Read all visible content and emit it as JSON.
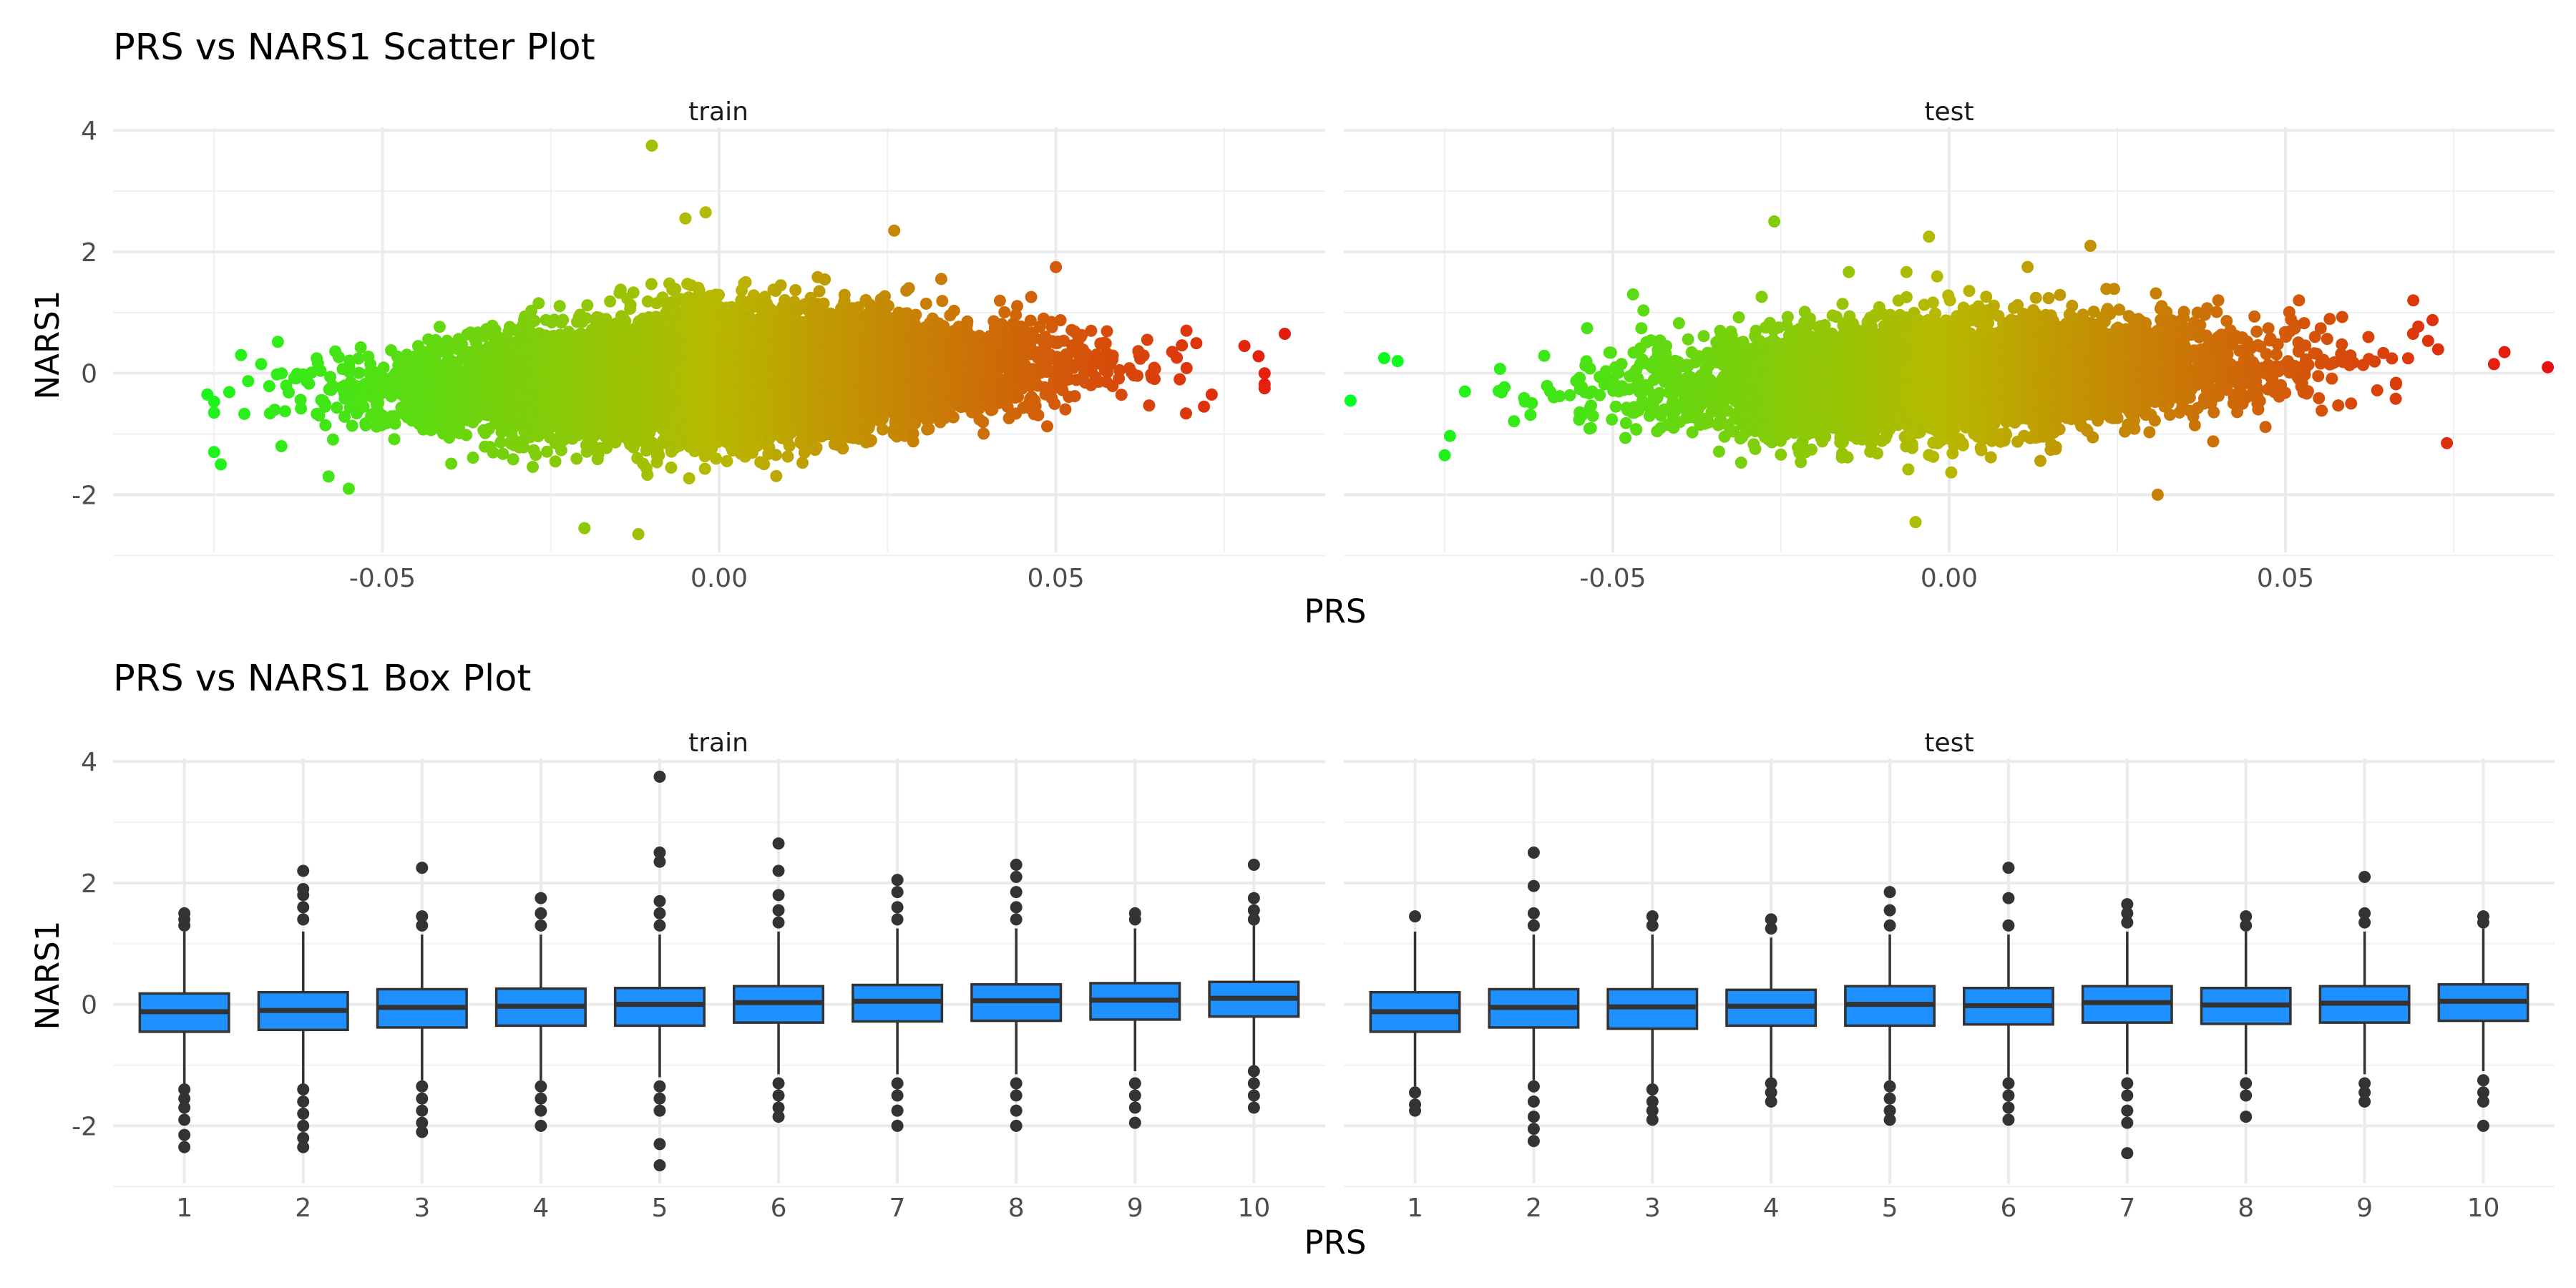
{
  "chart_data": [
    {
      "type": "scatter",
      "title": "PRS vs NARS1 Scatter Plot",
      "xlabel": "PRS",
      "ylabel": "NARS1",
      "panels": [
        "train",
        "test"
      ],
      "xlim": [
        -0.09,
        0.09
      ],
      "ylim": [
        -2.95,
        4.05
      ],
      "xticks": [
        -0.05,
        0.0,
        0.05
      ],
      "xtick_labels": [
        "-0.05",
        "0.00",
        "0.05"
      ],
      "yticks": [
        -2,
        0,
        2,
        4
      ],
      "ytick_labels": [
        "-2",
        "0",
        "2",
        "4"
      ],
      "grid": true,
      "color_scale": {
        "low": "#00ff22",
        "mid": "#b8b800",
        "high": "#e81010"
      },
      "approx_distribution": {
        "train": {
          "n_points": 9000,
          "prs_mean": 0.0,
          "prs_sd": 0.022,
          "prs_range": [
            -0.079,
            0.085
          ],
          "nars1_sd": 0.52,
          "trend": "positive"
        },
        "test": {
          "n_points": 5000,
          "prs_mean": 0.0,
          "prs_sd": 0.022,
          "prs_range": [
            -0.089,
            0.089
          ],
          "nars1_sd": 0.5,
          "trend": "positive"
        }
      },
      "notable_points": {
        "train": [
          [
            -0.076,
            -0.35
          ],
          [
            -0.074,
            -1.5
          ],
          [
            -0.071,
            0.3
          ],
          [
            -0.068,
            0.15
          ],
          [
            -0.066,
            -0.6
          ],
          [
            -0.065,
            -1.2
          ],
          [
            -0.058,
            -1.7
          ],
          [
            -0.055,
            -1.9
          ],
          [
            -0.01,
            3.75
          ],
          [
            -0.005,
            2.55
          ],
          [
            -0.002,
            2.65
          ],
          [
            0.026,
            2.35
          ],
          [
            0.05,
            1.75
          ],
          [
            0.072,
            -0.55
          ],
          [
            0.078,
            0.45
          ],
          [
            0.081,
            0.0
          ],
          [
            0.084,
            0.65
          ],
          [
            -0.02,
            -2.55
          ],
          [
            -0.012,
            -2.65
          ]
        ],
        "test": [
          [
            -0.089,
            -0.45
          ],
          [
            -0.084,
            0.25
          ],
          [
            -0.082,
            0.2
          ],
          [
            -0.075,
            -1.35
          ],
          [
            -0.072,
            -0.3
          ],
          [
            -0.047,
            1.3
          ],
          [
            -0.026,
            2.5
          ],
          [
            -0.003,
            2.25
          ],
          [
            0.021,
            2.1
          ],
          [
            0.052,
            1.2
          ],
          [
            0.069,
            1.2
          ],
          [
            0.074,
            -1.15
          ],
          [
            0.081,
            0.15
          ],
          [
            0.089,
            0.1
          ],
          [
            0.031,
            -2.0
          ],
          [
            -0.005,
            -2.45
          ]
        ]
      }
    },
    {
      "type": "box",
      "title": "PRS vs NARS1 Box Plot",
      "xlabel": "PRS",
      "ylabel": "NARS1",
      "panels": [
        "train",
        "test"
      ],
      "categories": [
        "1",
        "2",
        "3",
        "4",
        "5",
        "6",
        "7",
        "8",
        "9",
        "10"
      ],
      "ylim": [
        -2.95,
        4.05
      ],
      "yticks": [
        -2,
        0,
        2,
        4
      ],
      "ytick_labels": [
        "-2",
        "0",
        "2",
        "4"
      ],
      "box_color": "#1e90ff",
      "grid": true,
      "series": [
        {
          "name": "train",
          "boxes": [
            {
              "q1": -0.45,
              "median": -0.12,
              "q3": 0.18,
              "whisker_low": -1.3,
              "whisker_high": 1.2,
              "outliers_high": [
                1.3,
                1.4,
                1.5
              ],
              "outliers_low": [
                -1.4,
                -1.55,
                -1.7,
                -1.9,
                -2.15,
                -2.35
              ]
            },
            {
              "q1": -0.42,
              "median": -0.1,
              "q3": 0.2,
              "whisker_low": -1.3,
              "whisker_high": 1.2,
              "outliers_high": [
                1.4,
                1.6,
                1.8,
                1.9,
                2.2
              ],
              "outliers_low": [
                -1.4,
                -1.6,
                -1.8,
                -2.0,
                -2.2,
                -2.35
              ]
            },
            {
              "q1": -0.38,
              "median": -0.05,
              "q3": 0.25,
              "whisker_low": -1.25,
              "whisker_high": 1.15,
              "outliers_high": [
                1.3,
                1.45,
                2.25
              ],
              "outliers_low": [
                -1.35,
                -1.55,
                -1.75,
                -1.95,
                -2.1
              ]
            },
            {
              "q1": -0.35,
              "median": -0.03,
              "q3": 0.26,
              "whisker_low": -1.25,
              "whisker_high": 1.15,
              "outliers_high": [
                1.3,
                1.5,
                1.75
              ],
              "outliers_low": [
                -1.35,
                -1.55,
                -1.75,
                -2.0
              ]
            },
            {
              "q1": -0.35,
              "median": 0.0,
              "q3": 0.27,
              "whisker_low": -1.2,
              "whisker_high": 1.15,
              "outliers_high": [
                1.3,
                1.5,
                1.7,
                2.35,
                2.5,
                3.75
              ],
              "outliers_low": [
                -1.35,
                -1.55,
                -1.75,
                -2.3,
                -2.65
              ]
            },
            {
              "q1": -0.3,
              "median": 0.03,
              "q3": 0.3,
              "whisker_low": -1.15,
              "whisker_high": 1.2,
              "outliers_high": [
                1.35,
                1.55,
                1.8,
                2.2,
                2.65
              ],
              "outliers_low": [
                -1.3,
                -1.5,
                -1.7,
                -1.85
              ]
            },
            {
              "q1": -0.28,
              "median": 0.05,
              "q3": 0.32,
              "whisker_low": -1.15,
              "whisker_high": 1.25,
              "outliers_high": [
                1.4,
                1.6,
                1.85,
                2.05
              ],
              "outliers_low": [
                -1.3,
                -1.5,
                -1.75,
                -2.0
              ]
            },
            {
              "q1": -0.27,
              "median": 0.06,
              "q3": 0.33,
              "whisker_low": -1.15,
              "whisker_high": 1.25,
              "outliers_high": [
                1.4,
                1.6,
                1.85,
                2.1,
                2.3
              ],
              "outliers_low": [
                -1.3,
                -1.5,
                -1.75,
                -2.0
              ]
            },
            {
              "q1": -0.25,
              "median": 0.07,
              "q3": 0.35,
              "whisker_low": -1.1,
              "whisker_high": 1.25,
              "outliers_high": [
                1.4,
                1.5
              ],
              "outliers_low": [
                -1.3,
                -1.5,
                -1.7,
                -1.95
              ]
            },
            {
              "q1": -0.2,
              "median": 0.1,
              "q3": 0.37,
              "whisker_low": -1.0,
              "whisker_high": 1.3,
              "outliers_high": [
                1.4,
                1.55,
                1.75,
                2.3
              ],
              "outliers_low": [
                -1.1,
                -1.3,
                -1.5,
                -1.7
              ]
            }
          ]
        },
        {
          "name": "test",
          "boxes": [
            {
              "q1": -0.45,
              "median": -0.12,
              "q3": 0.2,
              "whisker_low": -1.35,
              "whisker_high": 1.2,
              "outliers_high": [
                1.45
              ],
              "outliers_low": [
                -1.45,
                -1.65,
                -1.75
              ]
            },
            {
              "q1": -0.38,
              "median": -0.05,
              "q3": 0.25,
              "whisker_low": -1.25,
              "whisker_high": 1.15,
              "outliers_high": [
                1.3,
                1.5,
                1.95,
                2.5
              ],
              "outliers_low": [
                -1.35,
                -1.6,
                -1.85,
                -2.05,
                -2.25
              ]
            },
            {
              "q1": -0.4,
              "median": -0.04,
              "q3": 0.25,
              "whisker_low": -1.3,
              "whisker_high": 1.15,
              "outliers_high": [
                1.3,
                1.45
              ],
              "outliers_low": [
                -1.4,
                -1.6,
                -1.75,
                -1.9
              ]
            },
            {
              "q1": -0.35,
              "median": -0.03,
              "q3": 0.24,
              "whisker_low": -1.2,
              "whisker_high": 1.1,
              "outliers_high": [
                1.25,
                1.4
              ],
              "outliers_low": [
                -1.3,
                -1.45,
                -1.6
              ]
            },
            {
              "q1": -0.35,
              "median": 0.0,
              "q3": 0.3,
              "whisker_low": -1.25,
              "whisker_high": 1.15,
              "outliers_high": [
                1.3,
                1.55,
                1.85
              ],
              "outliers_low": [
                -1.35,
                -1.55,
                -1.75,
                -1.9
              ]
            },
            {
              "q1": -0.33,
              "median": -0.02,
              "q3": 0.27,
              "whisker_low": -1.2,
              "whisker_high": 1.15,
              "outliers_high": [
                1.3,
                1.75,
                2.25
              ],
              "outliers_low": [
                -1.3,
                -1.5,
                -1.7,
                -1.9
              ]
            },
            {
              "q1": -0.3,
              "median": 0.03,
              "q3": 0.3,
              "whisker_low": -1.15,
              "whisker_high": 1.2,
              "outliers_high": [
                1.35,
                1.5,
                1.65
              ],
              "outliers_low": [
                -1.3,
                -1.5,
                -1.75,
                -1.95,
                -2.45
              ]
            },
            {
              "q1": -0.32,
              "median": -0.01,
              "q3": 0.27,
              "whisker_low": -1.15,
              "whisker_high": 1.2,
              "outliers_high": [
                1.3,
                1.45
              ],
              "outliers_low": [
                -1.3,
                -1.5,
                -1.85
              ]
            },
            {
              "q1": -0.3,
              "median": 0.02,
              "q3": 0.3,
              "whisker_low": -1.15,
              "whisker_high": 1.2,
              "outliers_high": [
                1.35,
                1.5,
                2.1
              ],
              "outliers_low": [
                -1.3,
                -1.45,
                -1.6
              ]
            },
            {
              "q1": -0.27,
              "median": 0.05,
              "q3": 0.33,
              "whisker_low": -1.1,
              "whisker_high": 1.25,
              "outliers_high": [
                1.35,
                1.45
              ],
              "outliers_low": [
                -1.25,
                -1.45,
                -1.6,
                -2.0
              ]
            }
          ]
        }
      ]
    }
  ]
}
